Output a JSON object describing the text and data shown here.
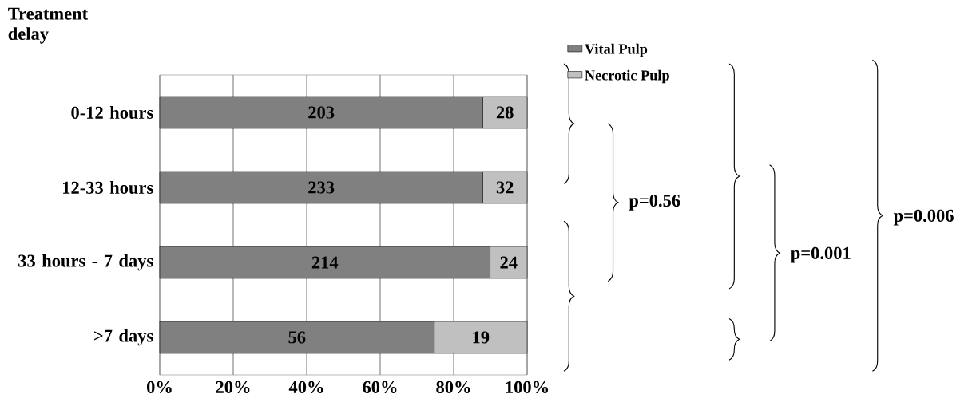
{
  "chart_data": {
    "type": "bar",
    "orientation": "horizontal",
    "stacked": true,
    "ylabel": "Treatment delay",
    "categories": [
      "0-12 hours",
      "12-33 hours",
      "33 hours - 7 days",
      ">7 days"
    ],
    "series": [
      {
        "name": "Vital Pulp",
        "color": "#808080",
        "values": [
          87.9,
          87.9,
          89.9,
          74.7
        ]
      },
      {
        "name": "Necrotic Pulp",
        "color": "#c0c0c0",
        "values": [
          12.1,
          12.1,
          10.1,
          25.3
        ]
      }
    ],
    "xlim": [
      0,
      100
    ],
    "xticks": [
      {
        "value": 0,
        "label": "0%"
      },
      {
        "value": 20,
        "label": "20%"
      },
      {
        "value": 40,
        "label": "40%"
      },
      {
        "value": 60,
        "label": "60%"
      },
      {
        "value": 80,
        "label": "80%"
      },
      {
        "value": 100,
        "label": "100%"
      }
    ],
    "grid": "x",
    "legend": "top right",
    "annotations": [
      "p=0.56",
      "p=0.001",
      "p=0.006",
      "203",
      "28",
      "233",
      "32",
      "214",
      "24",
      "56",
      "19"
    ]
  }
}
